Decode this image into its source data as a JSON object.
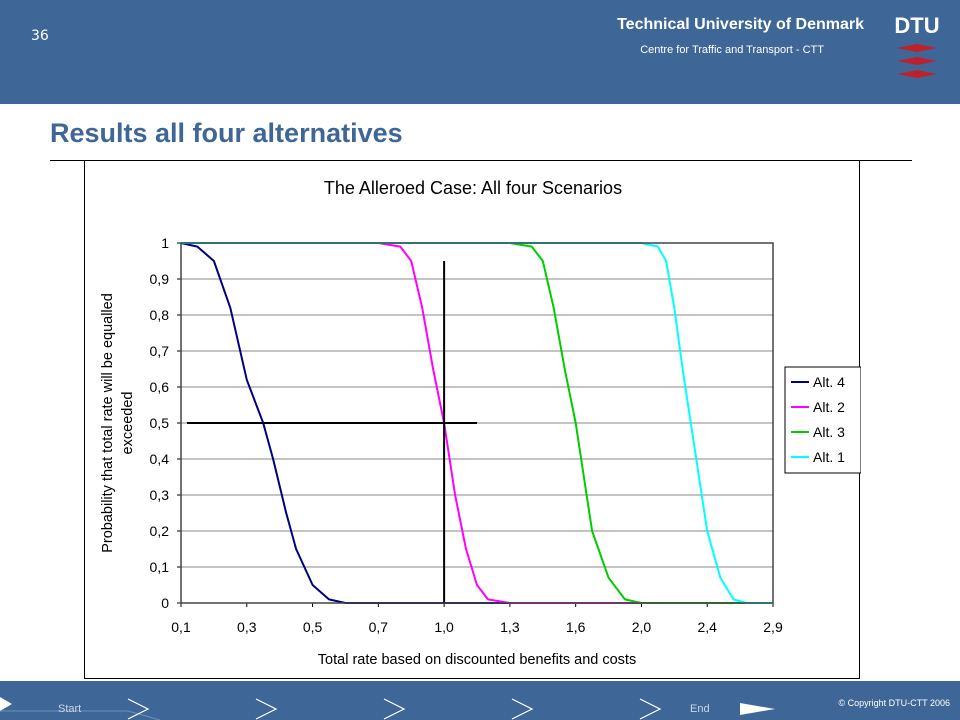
{
  "header": {
    "slide_number": "36",
    "university": "Technical University of Denmark",
    "centre": "Centre for Traffic and Transport - CTT",
    "logo_text": "DTU"
  },
  "page_title": "Results all four alternatives",
  "footer": {
    "start_label": "Start",
    "end_label": "End",
    "copyright": "© Copyright DTU-CTT 2006"
  },
  "colors": {
    "header": "#3e6797",
    "logo_red": "#c0202a",
    "alt4": "#000080",
    "alt2": "#ff00ff",
    "alt3": "#00cc00",
    "alt1": "#00ffff"
  },
  "chart_data": {
    "type": "line",
    "title": "The Alleroed Case: All four Scenarios",
    "xlabel": "Total rate based on discounted benefits and costs",
    "ylabel": "Probability that total rate will be equalled exceeded",
    "ylabel_lines": [
      "Probability that total rate will be equalled",
      "exceeded"
    ],
    "x_tick_labels": [
      "0,1",
      "0,3",
      "0,5",
      "0,7",
      "1,0",
      "1,3",
      "1,6",
      "2,0",
      "2,4",
      "2,9"
    ],
    "y_tick_labels": [
      "0",
      "0,1",
      "0,2",
      "0,3",
      "0,4",
      "0,5",
      "0,6",
      "0,7",
      "0,8",
      "0,9",
      "1"
    ],
    "ylim": [
      0,
      1
    ],
    "grid": "horizontal",
    "legend_position": "right",
    "series": [
      {
        "name": "Alt. 4",
        "color": "#000080",
        "x": [
          0.1,
          0.15,
          0.2,
          0.25,
          0.3,
          0.35,
          0.38,
          0.42,
          0.45,
          0.5,
          0.55,
          0.6
        ],
        "y": [
          1.0,
          0.99,
          0.95,
          0.82,
          0.62,
          0.5,
          0.4,
          0.25,
          0.15,
          0.05,
          0.01,
          0.0
        ]
      },
      {
        "name": "Alt. 2",
        "color": "#ff00ff",
        "x": [
          0.7,
          0.8,
          0.85,
          0.9,
          0.95,
          1.0,
          1.05,
          1.1,
          1.15,
          1.2,
          1.3
        ],
        "y": [
          1.0,
          0.99,
          0.95,
          0.82,
          0.65,
          0.5,
          0.3,
          0.15,
          0.05,
          0.01,
          0.0
        ]
      },
      {
        "name": "Alt. 3",
        "color": "#00cc00",
        "x": [
          1.3,
          1.4,
          1.45,
          1.5,
          1.55,
          1.6,
          1.65,
          1.7,
          1.8,
          1.9,
          2.0
        ],
        "y": [
          1.0,
          0.99,
          0.95,
          0.82,
          0.65,
          0.5,
          0.35,
          0.2,
          0.07,
          0.01,
          0.0
        ]
      },
      {
        "name": "Alt. 1",
        "color": "#00ffff",
        "x": [
          2.0,
          2.1,
          2.15,
          2.2,
          2.25,
          2.3,
          2.35,
          2.4,
          2.5,
          2.6,
          2.7
        ],
        "y": [
          1.0,
          0.99,
          0.95,
          0.82,
          0.65,
          0.5,
          0.35,
          0.2,
          0.07,
          0.01,
          0.0
        ]
      }
    ]
  }
}
